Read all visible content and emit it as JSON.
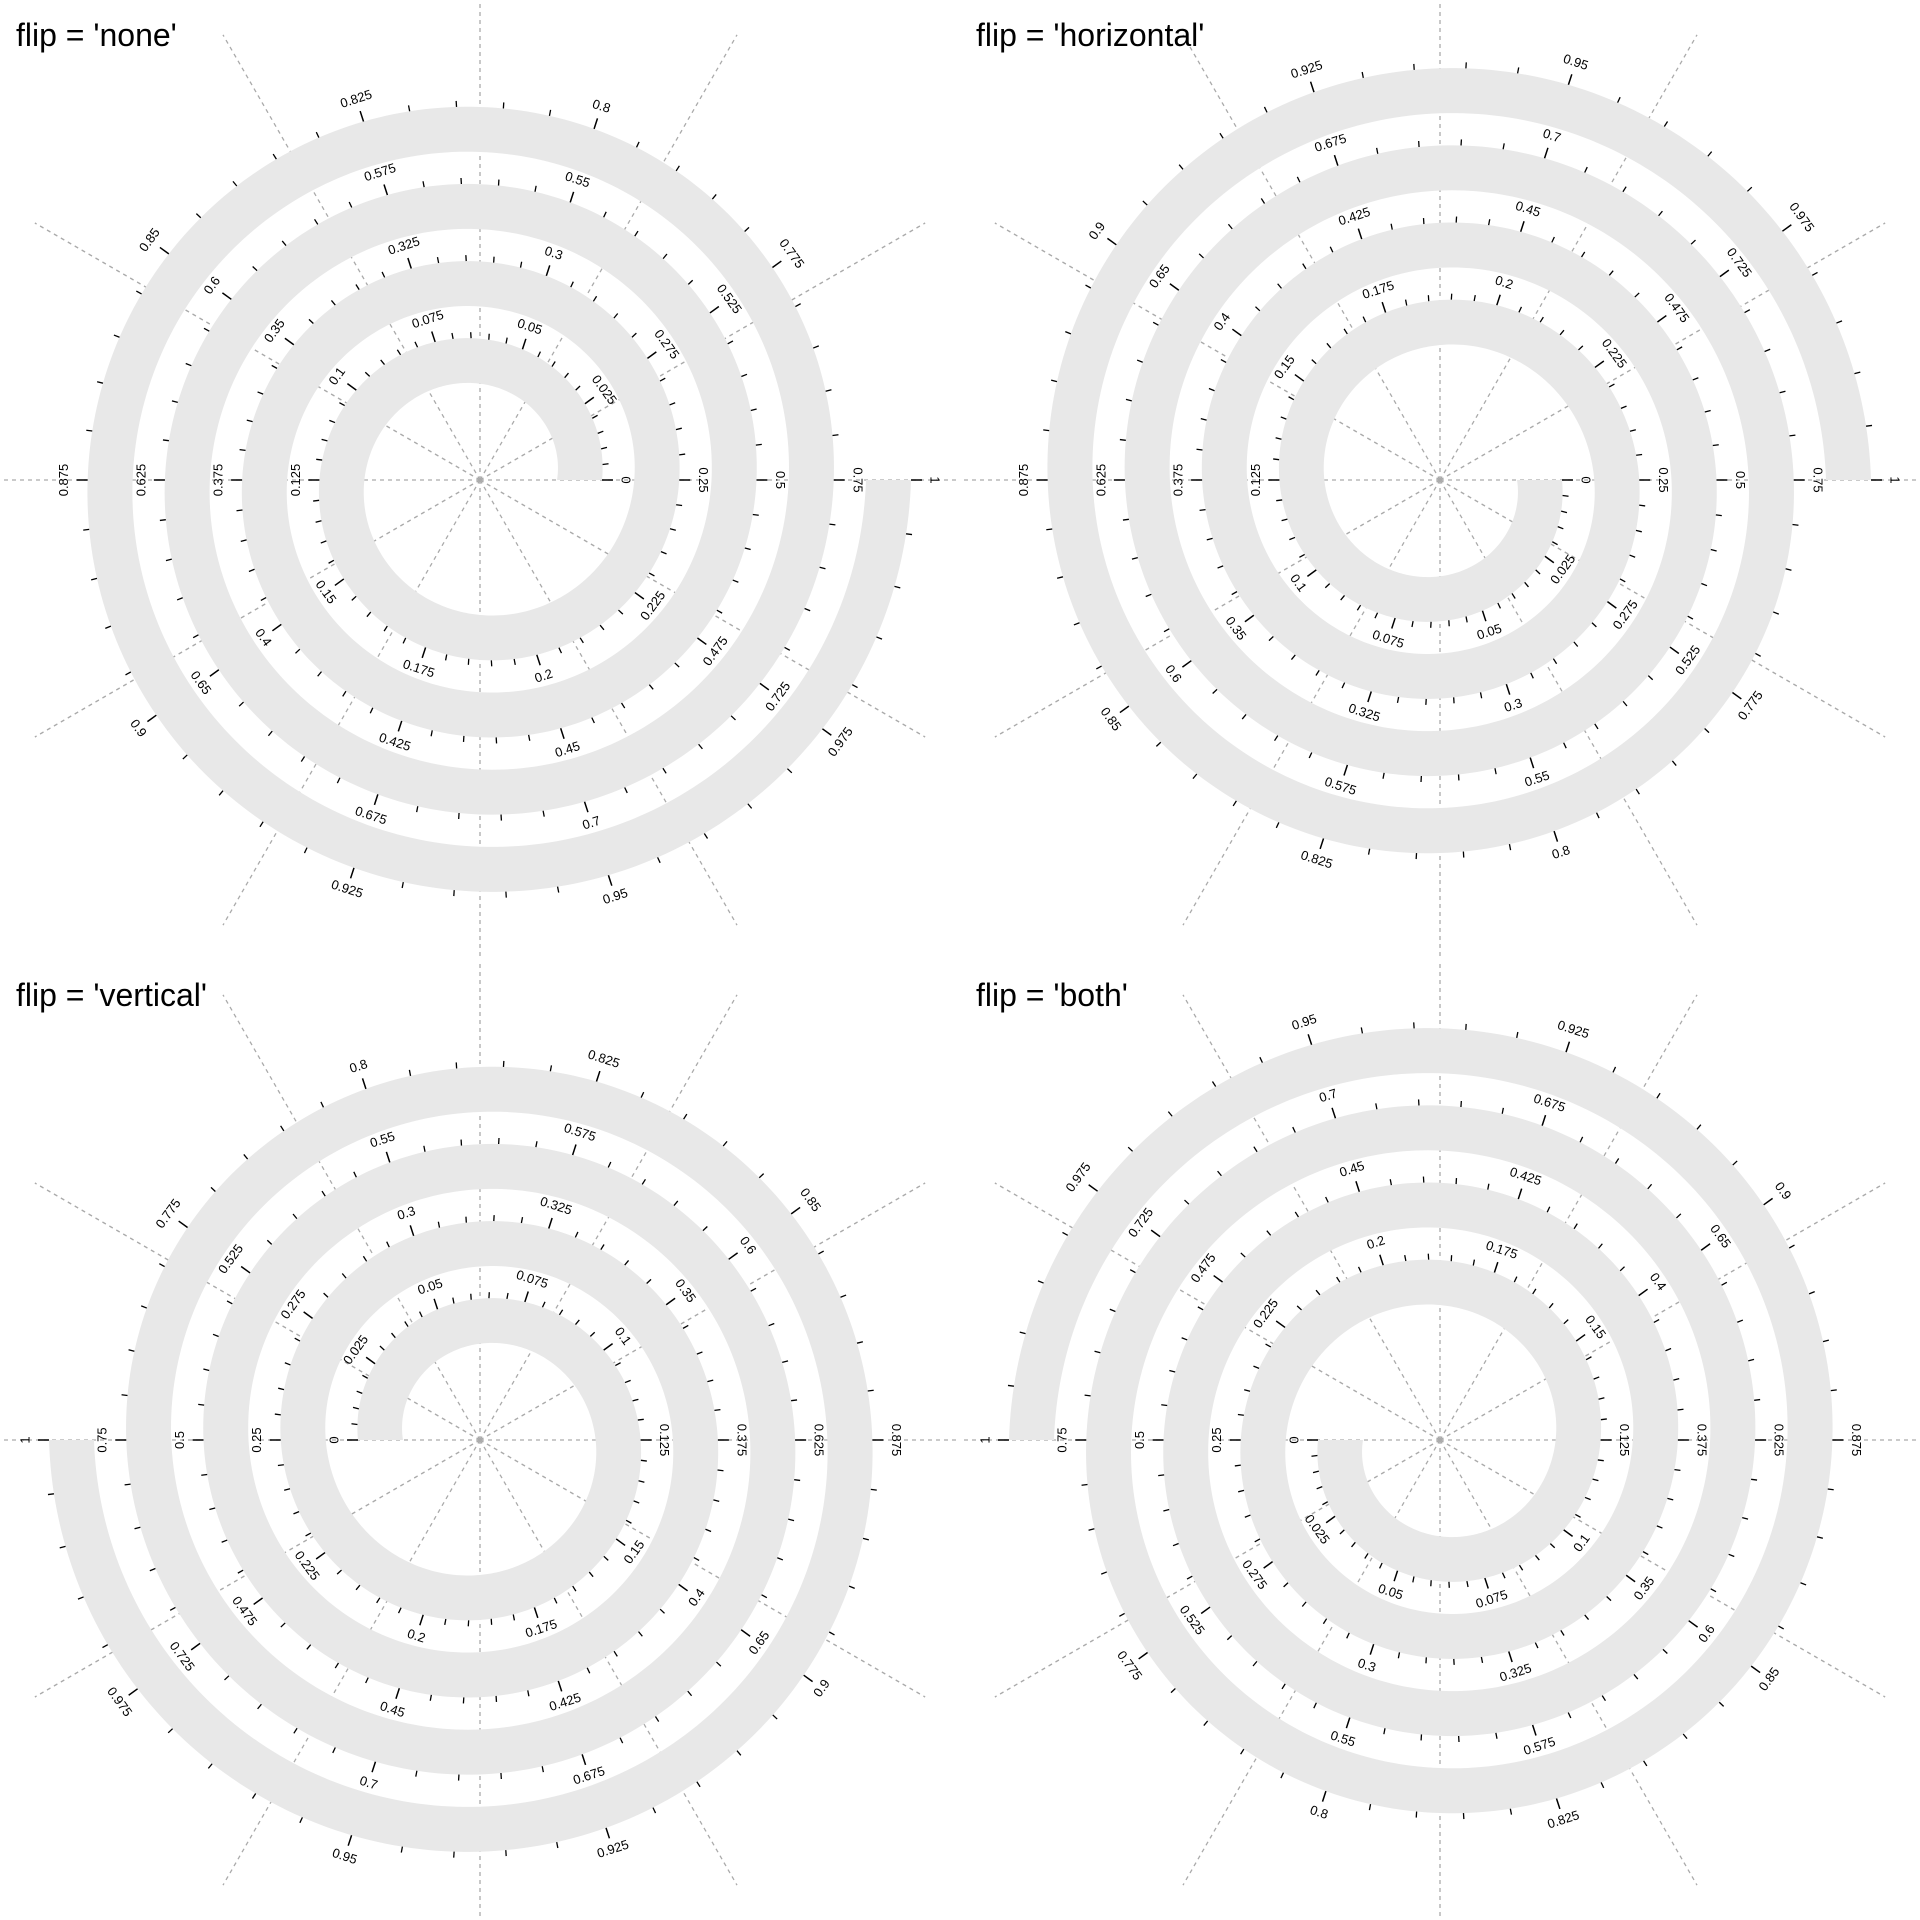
{
  "chart_data": [
    {
      "type": "spiral",
      "title": "flip = 'none'",
      "start_angle": 0,
      "clockwise": false,
      "track_color": "#e8e8e8",
      "xlim": [
        0,
        1
      ],
      "xticks": [
        0,
        0.025,
        0.05,
        0.075,
        0.1,
        0.125,
        0.15,
        0.175,
        0.2,
        0.225,
        0.25,
        0.275,
        0.3,
        0.325,
        0.35,
        0.375,
        0.4,
        0.425,
        0.45,
        0.475,
        0.5,
        0.525,
        0.55,
        0.575,
        0.6,
        0.625,
        0.65,
        0.675,
        0.7,
        0.725,
        0.75,
        0.775,
        0.8,
        0.825,
        0.85,
        0.875,
        0.9,
        0.925,
        0.95,
        0.975,
        1
      ],
      "minor_xticks": [
        0.005,
        0.01,
        0.015,
        0.02,
        0.03,
        0.035,
        0.04,
        0.045,
        0.055,
        0.06,
        0.065,
        0.07,
        0.08,
        0.085,
        0.09,
        0.095,
        0.105,
        0.11,
        0.115,
        0.12,
        0.13,
        0.135,
        0.14,
        0.145,
        0.155,
        0.16,
        0.165,
        0.17,
        0.18,
        0.185,
        0.19,
        0.195,
        0.205,
        0.21,
        0.215,
        0.22,
        0.23,
        0.235,
        0.24,
        0.245,
        0.255,
        0.26,
        0.265,
        0.27,
        0.28,
        0.285,
        0.29,
        0.295,
        0.305,
        0.31,
        0.315,
        0.32,
        0.33,
        0.335,
        0.34,
        0.345,
        0.355,
        0.36,
        0.365,
        0.37,
        0.38,
        0.385,
        0.39,
        0.395,
        0.405,
        0.41,
        0.415,
        0.42,
        0.43,
        0.435,
        0.44,
        0.445,
        0.455,
        0.46,
        0.465,
        0.47,
        0.48,
        0.485,
        0.49,
        0.495,
        0.505,
        0.51,
        0.515,
        0.52,
        0.53,
        0.535,
        0.54,
        0.545,
        0.555,
        0.56,
        0.565,
        0.57,
        0.58,
        0.585,
        0.59,
        0.595,
        0.605,
        0.61,
        0.615,
        0.62,
        0.63,
        0.635,
        0.64,
        0.645,
        0.655,
        0.66,
        0.665,
        0.67,
        0.68,
        0.685,
        0.69,
        0.695,
        0.705,
        0.71,
        0.715,
        0.72,
        0.73,
        0.735,
        0.74,
        0.745,
        0.755,
        0.76,
        0.765,
        0.77,
        0.78,
        0.785,
        0.79,
        0.795,
        0.805,
        0.81,
        0.815,
        0.82,
        0.83,
        0.835,
        0.84,
        0.845,
        0.855,
        0.86,
        0.865,
        0.87,
        0.88,
        0.885,
        0.89,
        0.895,
        0.905,
        0.91,
        0.915,
        0.92,
        0.93,
        0.935,
        0.94,
        0.945,
        0.955,
        0.96,
        0.965,
        0.97,
        0.98,
        0.985,
        0.99,
        0.995
      ]
    },
    {
      "type": "spiral",
      "title": "flip = 'horizontal'",
      "start_angle": 0,
      "clockwise": true,
      "track_color": "#e8e8e8",
      "xlim": [
        0,
        1
      ],
      "xticks": [
        0,
        0.025,
        0.05,
        0.075,
        0.1,
        0.125,
        0.15,
        0.175,
        0.2,
        0.225,
        0.25,
        0.275,
        0.3,
        0.325,
        0.35,
        0.375,
        0.4,
        0.425,
        0.45,
        0.475,
        0.5,
        0.525,
        0.55,
        0.575,
        0.6,
        0.625,
        0.65,
        0.675,
        0.7,
        0.725,
        0.75,
        0.775,
        0.8,
        0.825,
        0.85,
        0.875,
        0.9,
        0.925,
        0.95,
        0.975,
        1
      ],
      "minor_xticks": [
        0.005,
        0.01,
        0.015,
        0.02,
        0.03,
        0.035,
        0.04,
        0.045,
        0.055,
        0.06,
        0.065,
        0.07,
        0.08,
        0.085,
        0.09,
        0.095,
        0.105,
        0.11,
        0.115,
        0.12,
        0.13,
        0.135,
        0.14,
        0.145,
        0.155,
        0.16,
        0.165,
        0.17,
        0.18,
        0.185,
        0.19,
        0.195,
        0.205,
        0.21,
        0.215,
        0.22,
        0.23,
        0.235,
        0.24,
        0.245,
        0.255,
        0.26,
        0.265,
        0.27,
        0.28,
        0.285,
        0.29,
        0.295,
        0.305,
        0.31,
        0.315,
        0.32,
        0.33,
        0.335,
        0.34,
        0.345,
        0.355,
        0.36,
        0.365,
        0.37,
        0.38,
        0.385,
        0.39,
        0.395,
        0.405,
        0.41,
        0.415,
        0.42,
        0.43,
        0.435,
        0.44,
        0.445,
        0.455,
        0.46,
        0.465,
        0.47,
        0.48,
        0.485,
        0.49,
        0.495,
        0.505,
        0.51,
        0.515,
        0.52,
        0.53,
        0.535,
        0.54,
        0.545,
        0.555,
        0.56,
        0.565,
        0.57,
        0.58,
        0.585,
        0.59,
        0.595,
        0.605,
        0.61,
        0.615,
        0.62,
        0.63,
        0.635,
        0.64,
        0.645,
        0.655,
        0.66,
        0.665,
        0.67,
        0.68,
        0.685,
        0.69,
        0.695,
        0.705,
        0.71,
        0.715,
        0.72,
        0.73,
        0.735,
        0.74,
        0.745,
        0.755,
        0.76,
        0.765,
        0.77,
        0.78,
        0.785,
        0.79,
        0.795,
        0.805,
        0.81,
        0.815,
        0.82,
        0.83,
        0.835,
        0.84,
        0.845,
        0.855,
        0.86,
        0.865,
        0.87,
        0.88,
        0.885,
        0.89,
        0.895,
        0.905,
        0.91,
        0.915,
        0.92,
        0.93,
        0.935,
        0.94,
        0.945,
        0.955,
        0.96,
        0.965,
        0.97,
        0.98,
        0.985,
        0.99,
        0.995
      ]
    },
    {
      "type": "spiral",
      "title": "flip = 'vertical'",
      "start_angle": 180,
      "clockwise": true,
      "track_color": "#e8e8e8",
      "xlim": [
        0,
        1
      ],
      "xticks": [
        0,
        0.025,
        0.05,
        0.075,
        0.1,
        0.125,
        0.15,
        0.175,
        0.2,
        0.225,
        0.25,
        0.275,
        0.3,
        0.325,
        0.35,
        0.375,
        0.4,
        0.425,
        0.45,
        0.475,
        0.5,
        0.525,
        0.55,
        0.575,
        0.6,
        0.625,
        0.65,
        0.675,
        0.7,
        0.725,
        0.75,
        0.775,
        0.8,
        0.825,
        0.85,
        0.875,
        0.9,
        0.925,
        0.95,
        0.975,
        1
      ],
      "minor_xticks": [
        0.005,
        0.01,
        0.015,
        0.02,
        0.03,
        0.035,
        0.04,
        0.045,
        0.055,
        0.06,
        0.065,
        0.07,
        0.08,
        0.085,
        0.09,
        0.095,
        0.105,
        0.11,
        0.115,
        0.12,
        0.13,
        0.135,
        0.14,
        0.145,
        0.155,
        0.16,
        0.165,
        0.17,
        0.18,
        0.185,
        0.19,
        0.195,
        0.205,
        0.21,
        0.215,
        0.22,
        0.23,
        0.235,
        0.24,
        0.245,
        0.255,
        0.26,
        0.265,
        0.27,
        0.28,
        0.285,
        0.29,
        0.295,
        0.305,
        0.31,
        0.315,
        0.32,
        0.33,
        0.335,
        0.34,
        0.345,
        0.355,
        0.36,
        0.365,
        0.37,
        0.38,
        0.385,
        0.39,
        0.395,
        0.405,
        0.41,
        0.415,
        0.42,
        0.43,
        0.435,
        0.44,
        0.445,
        0.455,
        0.46,
        0.465,
        0.47,
        0.48,
        0.485,
        0.49,
        0.495,
        0.505,
        0.51,
        0.515,
        0.52,
        0.53,
        0.535,
        0.54,
        0.545,
        0.555,
        0.56,
        0.565,
        0.57,
        0.58,
        0.585,
        0.59,
        0.595,
        0.605,
        0.61,
        0.615,
        0.62,
        0.63,
        0.635,
        0.64,
        0.645,
        0.655,
        0.66,
        0.665,
        0.67,
        0.68,
        0.685,
        0.69,
        0.695,
        0.705,
        0.71,
        0.715,
        0.72,
        0.73,
        0.735,
        0.74,
        0.745,
        0.755,
        0.76,
        0.765,
        0.77,
        0.78,
        0.785,
        0.79,
        0.795,
        0.805,
        0.81,
        0.815,
        0.82,
        0.83,
        0.835,
        0.84,
        0.845,
        0.855,
        0.86,
        0.865,
        0.87,
        0.88,
        0.885,
        0.89,
        0.895,
        0.905,
        0.91,
        0.915,
        0.92,
        0.93,
        0.935,
        0.94,
        0.945,
        0.955,
        0.96,
        0.965,
        0.97,
        0.98,
        0.985,
        0.99,
        0.995
      ]
    },
    {
      "type": "spiral",
      "title": "flip = 'both'",
      "start_angle": 180,
      "clockwise": false,
      "track_color": "#e8e8e8",
      "xlim": [
        0,
        1
      ],
      "xticks": [
        0,
        0.025,
        0.05,
        0.075,
        0.1,
        0.125,
        0.15,
        0.175,
        0.2,
        0.225,
        0.25,
        0.275,
        0.3,
        0.325,
        0.35,
        0.375,
        0.4,
        0.425,
        0.45,
        0.475,
        0.5,
        0.525,
        0.55,
        0.575,
        0.6,
        0.625,
        0.65,
        0.675,
        0.7,
        0.725,
        0.75,
        0.775,
        0.8,
        0.825,
        0.85,
        0.875,
        0.9,
        0.925,
        0.95,
        0.975,
        1
      ],
      "minor_xticks": [
        0.005,
        0.01,
        0.015,
        0.02,
        0.03,
        0.035,
        0.04,
        0.045,
        0.055,
        0.06,
        0.065,
        0.07,
        0.08,
        0.085,
        0.09,
        0.095,
        0.105,
        0.11,
        0.115,
        0.12,
        0.13,
        0.135,
        0.14,
        0.145,
        0.155,
        0.16,
        0.165,
        0.17,
        0.18,
        0.185,
        0.19,
        0.195,
        0.205,
        0.21,
        0.215,
        0.22,
        0.23,
        0.235,
        0.24,
        0.245,
        0.255,
        0.26,
        0.265,
        0.27,
        0.28,
        0.285,
        0.29,
        0.295,
        0.305,
        0.31,
        0.315,
        0.32,
        0.33,
        0.335,
        0.34,
        0.345,
        0.355,
        0.36,
        0.365,
        0.37,
        0.38,
        0.385,
        0.39,
        0.395,
        0.405,
        0.41,
        0.415,
        0.42,
        0.43,
        0.435,
        0.44,
        0.445,
        0.455,
        0.46,
        0.465,
        0.47,
        0.48,
        0.485,
        0.49,
        0.495,
        0.505,
        0.51,
        0.515,
        0.52,
        0.53,
        0.535,
        0.54,
        0.545,
        0.555,
        0.56,
        0.565,
        0.57,
        0.58,
        0.585,
        0.59,
        0.595,
        0.605,
        0.61,
        0.615,
        0.62,
        0.63,
        0.635,
        0.64,
        0.645,
        0.655,
        0.66,
        0.665,
        0.67,
        0.68,
        0.685,
        0.69,
        0.695,
        0.705,
        0.71,
        0.715,
        0.72,
        0.73,
        0.735,
        0.74,
        0.745,
        0.755,
        0.76,
        0.765,
        0.77,
        0.78,
        0.785,
        0.79,
        0.795,
        0.805,
        0.81,
        0.815,
        0.82,
        0.83,
        0.835,
        0.84,
        0.845,
        0.855,
        0.86,
        0.865,
        0.87,
        0.88,
        0.885,
        0.89,
        0.895,
        0.905,
        0.91,
        0.915,
        0.92,
        0.93,
        0.935,
        0.94,
        0.945,
        0.955,
        0.96,
        0.965,
        0.97,
        0.98,
        0.985,
        0.99,
        0.995
      ]
    }
  ]
}
